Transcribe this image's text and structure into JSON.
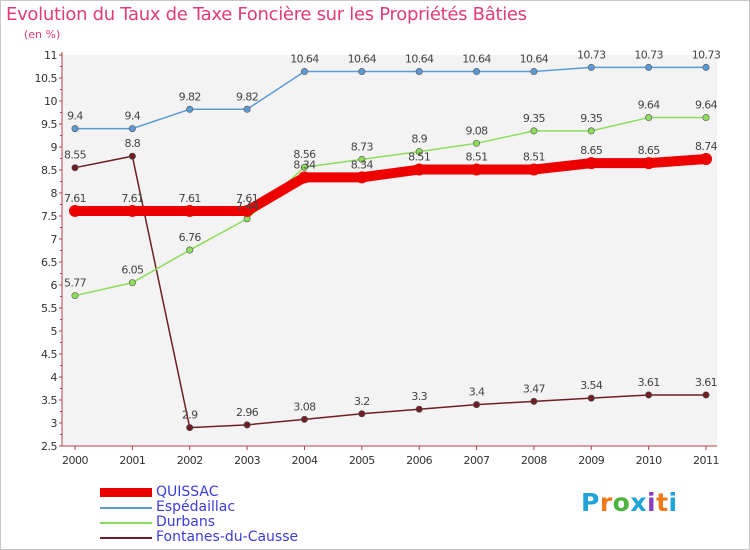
{
  "title": "Evolution du Taux de Taxe Foncière sur les Propriétés Bâties",
  "subtitle": "(en %)",
  "logo": [
    "P",
    "r",
    "o",
    "x",
    "i",
    "t",
    "i"
  ],
  "chart_data": {
    "type": "line",
    "x": [
      "2000",
      "2001",
      "2002",
      "2003",
      "2004",
      "2005",
      "2006",
      "2007",
      "2008",
      "2009",
      "2010",
      "2011"
    ],
    "ylim": [
      2.5,
      11
    ],
    "yticks": [
      "2.5",
      "3",
      "3.5",
      "4",
      "4.5",
      "5",
      "5.5",
      "6",
      "6.5",
      "7",
      "7.5",
      "8",
      "8.5",
      "9",
      "9.5",
      "10",
      "10.5",
      "11"
    ],
    "grid": false,
    "series": [
      {
        "name": "QUISSAC",
        "color": "#ee0000",
        "values": [
          7.61,
          7.61,
          7.61,
          7.61,
          8.34,
          8.34,
          8.51,
          8.51,
          8.51,
          8.65,
          8.65,
          8.74
        ],
        "labels": [
          "7.61",
          "7.61",
          "7.61",
          "7.61",
          "8.34",
          "8.34",
          "8.51",
          "8.51",
          "8.51",
          "8.65",
          "8.65",
          "8.74"
        ]
      },
      {
        "name": "Espédaillac",
        "color": "#5b9bd5",
        "values": [
          9.4,
          9.4,
          9.82,
          9.82,
          10.64,
          10.64,
          10.64,
          10.64,
          10.64,
          10.73,
          10.73,
          10.73
        ],
        "labels": [
          "9.4",
          "9.4",
          "9.82",
          "9.82",
          "10.64",
          "10.64",
          "10.64",
          "10.64",
          "10.64",
          "10.73",
          "10.73",
          "10.73"
        ]
      },
      {
        "name": "Durbans",
        "color": "#8ddc5c",
        "values": [
          5.77,
          6.05,
          6.76,
          7.44,
          8.56,
          8.73,
          8.9,
          9.08,
          9.35,
          9.35,
          9.64,
          9.64
        ],
        "labels": [
          "5.77",
          "6.05",
          "6.76",
          "7.44",
          "8.56",
          "8.73",
          "8.9",
          "9.08",
          "9.35",
          "9.35",
          "9.64",
          "9.64"
        ]
      },
      {
        "name": "Fontanes-du-Causse",
        "color": "#6e1f26",
        "values": [
          8.55,
          8.8,
          2.9,
          2.96,
          3.08,
          3.2,
          3.3,
          3.4,
          3.47,
          3.54,
          3.61,
          3.61
        ],
        "labels": [
          "8.55",
          "8.8",
          "2.9",
          "2.96",
          "3.08",
          "3.2",
          "3.3",
          "3.4",
          "3.47",
          "3.54",
          "3.61",
          "3.61"
        ]
      }
    ]
  }
}
